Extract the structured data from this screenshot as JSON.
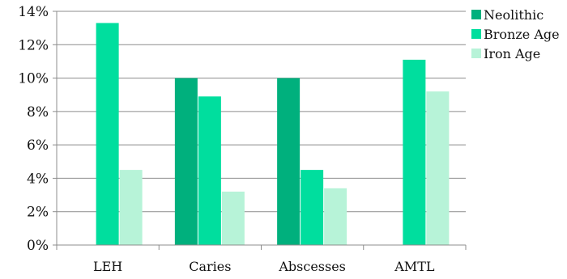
{
  "chart_data": {
    "type": "bar",
    "categories": [
      "LEH",
      "Caries",
      "Abscesses",
      "AMTL"
    ],
    "series": [
      {
        "name": "Neolithic",
        "color": "#00b07d",
        "values": [
          null,
          10.0,
          10.0,
          null
        ]
      },
      {
        "name": "Bronze Age",
        "color": "#00de9e",
        "values": [
          13.3,
          8.9,
          4.5,
          11.1
        ]
      },
      {
        "name": "Iron Age",
        "color": "#b7f3d8",
        "values": [
          4.5,
          3.2,
          3.4,
          9.2
        ]
      }
    ],
    "y_ticks": [
      "0%",
      "2%",
      "4%",
      "6%",
      "8%",
      "10%",
      "12%",
      "14%"
    ],
    "ylim": [
      0,
      14
    ],
    "y_unit": "%",
    "grid": true,
    "legend_position": "top-right"
  }
}
